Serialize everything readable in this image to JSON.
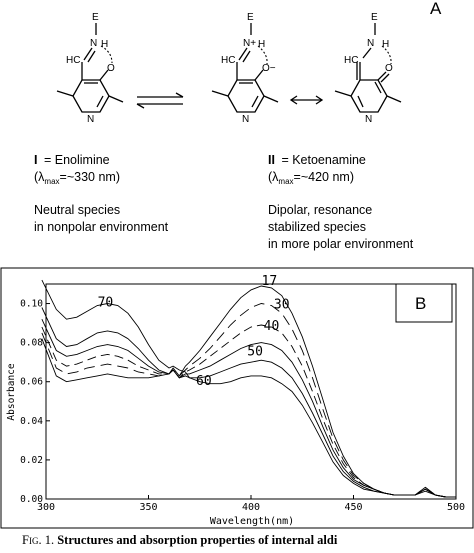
{
  "panel_a": {
    "label": "A",
    "species_1": {
      "numeral": "I",
      "name": "= Enolimine",
      "lambda_prefix": "(λ",
      "lambda_sub": "max",
      "lambda_value": "=~330 nm)",
      "desc_lines": [
        "Neutral species",
        "in nonpolar environment"
      ]
    },
    "species_2": {
      "numeral": "II",
      "name": "= Ketoenamine",
      "lambda_prefix": "(λ",
      "lambda_sub": "max",
      "lambda_value": "=~420 nm)",
      "desc_lines": [
        "Dipolar, resonance",
        "stabilized species",
        "in more polar environment"
      ]
    },
    "atoms": {
      "E": "E",
      "N": "N",
      "H": "H",
      "O": "O",
      "HC": "HC",
      "Nplus": "N+",
      "Ominus": "O−"
    }
  },
  "panel_b": {
    "label": "B"
  },
  "chart_data": {
    "type": "line",
    "xlabel": "Wavelength(nm)",
    "ylabel": "Absorbance",
    "xlim": [
      300,
      500
    ],
    "ylim": [
      0.0,
      0.11
    ],
    "x_ticks": [
      "300",
      "350",
      "400",
      "450",
      "500"
    ],
    "y_ticks": [
      "0.00",
      "0.02",
      "0.04",
      "0.06",
      "0.08",
      "0.10"
    ],
    "x": [
      298,
      305,
      310,
      315,
      320,
      325,
      330,
      335,
      340,
      345,
      350,
      355,
      360,
      362,
      365,
      368,
      370,
      375,
      380,
      385,
      390,
      395,
      400,
      405,
      410,
      415,
      420,
      425,
      430,
      435,
      440,
      445,
      450,
      455,
      460,
      465,
      470,
      475,
      480,
      485,
      490,
      495,
      500
    ],
    "series": [
      {
        "name": "70",
        "values": [
          0.112,
          0.097,
          0.092,
          0.093,
          0.096,
          0.099,
          0.1,
          0.099,
          0.095,
          0.088,
          0.079,
          0.071,
          0.067,
          0.068,
          0.066,
          0.065,
          0.062,
          0.06,
          0.059,
          0.059,
          0.06,
          0.062,
          0.063,
          0.063,
          0.062,
          0.059,
          0.055,
          0.048,
          0.039,
          0.029,
          0.019,
          0.012,
          0.008,
          0.005,
          0.004,
          0.003,
          0.002,
          0.002,
          0.002,
          0.004,
          0.002,
          0.001,
          0.001
        ]
      },
      {
        "name": "60",
        "values": [
          0.098,
          0.082,
          0.078,
          0.079,
          0.082,
          0.085,
          0.086,
          0.085,
          0.082,
          0.077,
          0.071,
          0.066,
          0.064,
          0.066,
          0.062,
          0.063,
          0.062,
          0.062,
          0.063,
          0.065,
          0.067,
          0.069,
          0.07,
          0.071,
          0.07,
          0.067,
          0.062,
          0.054,
          0.044,
          0.033,
          0.022,
          0.014,
          0.009,
          0.006,
          0.004,
          0.003,
          0.002,
          0.002,
          0.002,
          0.005,
          0.002,
          0.001,
          0.001
        ]
      },
      {
        "name": "50",
        "values": [
          0.092,
          0.076,
          0.073,
          0.074,
          0.076,
          0.078,
          0.079,
          0.078,
          0.076,
          0.072,
          0.068,
          0.065,
          0.064,
          0.066,
          0.062,
          0.064,
          0.064,
          0.066,
          0.068,
          0.071,
          0.074,
          0.077,
          0.079,
          0.08,
          0.079,
          0.076,
          0.07,
          0.061,
          0.05,
          0.037,
          0.025,
          0.016,
          0.01,
          0.007,
          0.005,
          0.003,
          0.002,
          0.002,
          0.002,
          0.005,
          0.002,
          0.001,
          0.001
        ]
      },
      {
        "name": "40",
        "values": [
          0.088,
          0.071,
          0.068,
          0.069,
          0.071,
          0.073,
          0.074,
          0.073,
          0.071,
          0.068,
          0.066,
          0.064,
          0.064,
          0.066,
          0.062,
          0.065,
          0.066,
          0.069,
          0.073,
          0.077,
          0.081,
          0.085,
          0.088,
          0.089,
          0.088,
          0.085,
          0.078,
          0.068,
          0.055,
          0.041,
          0.028,
          0.018,
          0.011,
          0.007,
          0.005,
          0.003,
          0.002,
          0.002,
          0.002,
          0.005,
          0.002,
          0.001,
          0.001
        ]
      },
      {
        "name": "30",
        "values": [
          0.085,
          0.067,
          0.064,
          0.065,
          0.067,
          0.068,
          0.069,
          0.068,
          0.067,
          0.065,
          0.064,
          0.063,
          0.064,
          0.066,
          0.063,
          0.066,
          0.068,
          0.072,
          0.077,
          0.083,
          0.089,
          0.094,
          0.098,
          0.1,
          0.099,
          0.095,
          0.087,
          0.076,
          0.062,
          0.046,
          0.031,
          0.02,
          0.012,
          0.008,
          0.005,
          0.003,
          0.002,
          0.002,
          0.002,
          0.006,
          0.002,
          0.001,
          0.001
        ]
      },
      {
        "name": "17",
        "values": [
          0.082,
          0.063,
          0.06,
          0.061,
          0.062,
          0.063,
          0.064,
          0.063,
          0.062,
          0.062,
          0.062,
          0.063,
          0.064,
          0.067,
          0.063,
          0.068,
          0.07,
          0.076,
          0.083,
          0.09,
          0.097,
          0.103,
          0.107,
          0.109,
          0.108,
          0.104,
          0.095,
          0.083,
          0.068,
          0.051,
          0.034,
          0.022,
          0.013,
          0.008,
          0.005,
          0.003,
          0.002,
          0.002,
          0.002,
          0.006,
          0.002,
          0.001,
          0.001
        ]
      }
    ],
    "curve_labels": [
      "70",
      "17",
      "30",
      "40",
      "50",
      "60"
    ]
  },
  "caption": {
    "prefix": "Fig. 1.",
    "text": "Structures and absorption properties of internal aldi"
  }
}
